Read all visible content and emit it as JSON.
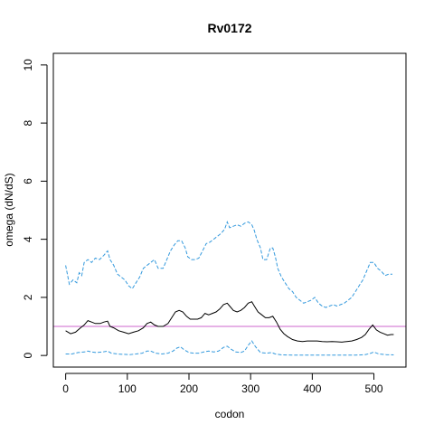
{
  "chart_data": {
    "type": "line",
    "title": "Rv0172",
    "xlabel": "codon",
    "ylabel": "omega (dN/dS)",
    "xlim": [
      -20,
      552
    ],
    "ylim": [
      -0.4,
      10.4
    ],
    "xticks": [
      0,
      100,
      200,
      300,
      400,
      500
    ],
    "yticks": [
      0,
      2,
      4,
      6,
      8,
      10
    ],
    "reference_line": {
      "y": 1,
      "color": "#cc66cc"
    },
    "grid": false,
    "legend": "none",
    "series": [
      {
        "role": "upper",
        "color": "#3399dd",
        "style": "dashed",
        "points": [
          [
            0,
            3.1
          ],
          [
            6,
            2.45
          ],
          [
            12,
            2.6
          ],
          [
            18,
            2.5
          ],
          [
            22,
            2.85
          ],
          [
            26,
            2.75
          ],
          [
            30,
            3.2
          ],
          [
            36,
            3.3
          ],
          [
            42,
            3.2
          ],
          [
            48,
            3.35
          ],
          [
            55,
            3.3
          ],
          [
            62,
            3.45
          ],
          [
            68,
            3.6
          ],
          [
            72,
            3.3
          ],
          [
            78,
            3.1
          ],
          [
            84,
            2.8
          ],
          [
            90,
            2.7
          ],
          [
            96,
            2.6
          ],
          [
            102,
            2.4
          ],
          [
            108,
            2.3
          ],
          [
            114,
            2.5
          ],
          [
            120,
            2.7
          ],
          [
            126,
            3.0
          ],
          [
            132,
            3.1
          ],
          [
            138,
            3.2
          ],
          [
            144,
            3.3
          ],
          [
            150,
            3.0
          ],
          [
            158,
            3.0
          ],
          [
            164,
            3.3
          ],
          [
            170,
            3.6
          ],
          [
            176,
            3.8
          ],
          [
            182,
            3.95
          ],
          [
            188,
            3.95
          ],
          [
            194,
            3.7
          ],
          [
            198,
            3.4
          ],
          [
            204,
            3.3
          ],
          [
            210,
            3.3
          ],
          [
            216,
            3.35
          ],
          [
            222,
            3.6
          ],
          [
            228,
            3.85
          ],
          [
            234,
            3.9
          ],
          [
            240,
            4.0
          ],
          [
            246,
            4.1
          ],
          [
            252,
            4.2
          ],
          [
            258,
            4.35
          ],
          [
            262,
            4.6
          ],
          [
            266,
            4.4
          ],
          [
            272,
            4.45
          ],
          [
            278,
            4.5
          ],
          [
            284,
            4.45
          ],
          [
            290,
            4.55
          ],
          [
            296,
            4.6
          ],
          [
            302,
            4.5
          ],
          [
            306,
            4.3
          ],
          [
            310,
            4.0
          ],
          [
            316,
            3.7
          ],
          [
            320,
            3.3
          ],
          [
            326,
            3.3
          ],
          [
            332,
            3.7
          ],
          [
            336,
            3.7
          ],
          [
            340,
            3.4
          ],
          [
            344,
            3.0
          ],
          [
            350,
            2.7
          ],
          [
            356,
            2.5
          ],
          [
            362,
            2.3
          ],
          [
            368,
            2.2
          ],
          [
            374,
            2.0
          ],
          [
            380,
            1.9
          ],
          [
            386,
            1.8
          ],
          [
            392,
            1.85
          ],
          [
            398,
            1.9
          ],
          [
            404,
            2.0
          ],
          [
            410,
            1.8
          ],
          [
            416,
            1.7
          ],
          [
            422,
            1.65
          ],
          [
            428,
            1.7
          ],
          [
            434,
            1.75
          ],
          [
            440,
            1.7
          ],
          [
            446,
            1.75
          ],
          [
            452,
            1.8
          ],
          [
            458,
            1.9
          ],
          [
            464,
            2.0
          ],
          [
            470,
            2.2
          ],
          [
            476,
            2.4
          ],
          [
            482,
            2.6
          ],
          [
            488,
            2.9
          ],
          [
            494,
            3.2
          ],
          [
            500,
            3.2
          ],
          [
            506,
            3.0
          ],
          [
            512,
            2.9
          ],
          [
            518,
            2.75
          ],
          [
            524,
            2.8
          ],
          [
            530,
            2.8
          ]
        ]
      },
      {
        "role": "estimate",
        "color": "#000000",
        "style": "solid",
        "points": [
          [
            0,
            0.85
          ],
          [
            8,
            0.75
          ],
          [
            16,
            0.8
          ],
          [
            24,
            0.95
          ],
          [
            30,
            1.05
          ],
          [
            36,
            1.2
          ],
          [
            42,
            1.15
          ],
          [
            48,
            1.1
          ],
          [
            56,
            1.1
          ],
          [
            62,
            1.15
          ],
          [
            68,
            1.18
          ],
          [
            72,
            1.0
          ],
          [
            78,
            0.95
          ],
          [
            86,
            0.85
          ],
          [
            94,
            0.8
          ],
          [
            102,
            0.75
          ],
          [
            110,
            0.8
          ],
          [
            118,
            0.85
          ],
          [
            126,
            0.95
          ],
          [
            132,
            1.1
          ],
          [
            138,
            1.15
          ],
          [
            144,
            1.05
          ],
          [
            150,
            1.0
          ],
          [
            158,
            1.0
          ],
          [
            166,
            1.1
          ],
          [
            172,
            1.3
          ],
          [
            178,
            1.5
          ],
          [
            184,
            1.55
          ],
          [
            190,
            1.5
          ],
          [
            196,
            1.35
          ],
          [
            202,
            1.25
          ],
          [
            208,
            1.25
          ],
          [
            214,
            1.25
          ],
          [
            220,
            1.3
          ],
          [
            226,
            1.45
          ],
          [
            232,
            1.4
          ],
          [
            238,
            1.45
          ],
          [
            244,
            1.5
          ],
          [
            250,
            1.6
          ],
          [
            256,
            1.75
          ],
          [
            262,
            1.8
          ],
          [
            266,
            1.7
          ],
          [
            272,
            1.55
          ],
          [
            278,
            1.5
          ],
          [
            284,
            1.55
          ],
          [
            290,
            1.65
          ],
          [
            296,
            1.8
          ],
          [
            302,
            1.85
          ],
          [
            306,
            1.7
          ],
          [
            312,
            1.5
          ],
          [
            318,
            1.4
          ],
          [
            324,
            1.3
          ],
          [
            330,
            1.3
          ],
          [
            336,
            1.35
          ],
          [
            342,
            1.15
          ],
          [
            348,
            0.9
          ],
          [
            354,
            0.75
          ],
          [
            360,
            0.65
          ],
          [
            368,
            0.55
          ],
          [
            376,
            0.5
          ],
          [
            384,
            0.48
          ],
          [
            392,
            0.5
          ],
          [
            400,
            0.5
          ],
          [
            408,
            0.5
          ],
          [
            416,
            0.48
          ],
          [
            424,
            0.47
          ],
          [
            432,
            0.48
          ],
          [
            440,
            0.47
          ],
          [
            448,
            0.46
          ],
          [
            456,
            0.48
          ],
          [
            464,
            0.5
          ],
          [
            472,
            0.55
          ],
          [
            480,
            0.62
          ],
          [
            486,
            0.72
          ],
          [
            492,
            0.9
          ],
          [
            498,
            1.05
          ],
          [
            504,
            0.88
          ],
          [
            510,
            0.8
          ],
          [
            516,
            0.75
          ],
          [
            522,
            0.7
          ],
          [
            528,
            0.72
          ],
          [
            532,
            0.72
          ]
        ]
      },
      {
        "role": "lower",
        "color": "#3399dd",
        "style": "dashed",
        "points": [
          [
            0,
            0.05
          ],
          [
            10,
            0.05
          ],
          [
            20,
            0.1
          ],
          [
            30,
            0.12
          ],
          [
            36,
            0.15
          ],
          [
            42,
            0.12
          ],
          [
            50,
            0.1
          ],
          [
            60,
            0.12
          ],
          [
            68,
            0.15
          ],
          [
            74,
            0.08
          ],
          [
            84,
            0.05
          ],
          [
            94,
            0.04
          ],
          [
            104,
            0.03
          ],
          [
            114,
            0.05
          ],
          [
            124,
            0.08
          ],
          [
            132,
            0.15
          ],
          [
            138,
            0.15
          ],
          [
            146,
            0.08
          ],
          [
            156,
            0.05
          ],
          [
            166,
            0.08
          ],
          [
            174,
            0.15
          ],
          [
            180,
            0.25
          ],
          [
            186,
            0.3
          ],
          [
            192,
            0.2
          ],
          [
            200,
            0.1
          ],
          [
            208,
            0.08
          ],
          [
            216,
            0.08
          ],
          [
            224,
            0.12
          ],
          [
            232,
            0.15
          ],
          [
            240,
            0.12
          ],
          [
            248,
            0.15
          ],
          [
            256,
            0.28
          ],
          [
            262,
            0.32
          ],
          [
            268,
            0.22
          ],
          [
            276,
            0.12
          ],
          [
            284,
            0.1
          ],
          [
            290,
            0.15
          ],
          [
            296,
            0.35
          ],
          [
            302,
            0.5
          ],
          [
            308,
            0.3
          ],
          [
            316,
            0.1
          ],
          [
            326,
            0.08
          ],
          [
            334,
            0.1
          ],
          [
            340,
            0.05
          ],
          [
            350,
            0.02
          ],
          [
            370,
            0.01
          ],
          [
            400,
            0.01
          ],
          [
            440,
            0.01
          ],
          [
            470,
            0.01
          ],
          [
            486,
            0.03
          ],
          [
            494,
            0.07
          ],
          [
            500,
            0.12
          ],
          [
            508,
            0.05
          ],
          [
            520,
            0.03
          ],
          [
            532,
            0.02
          ]
        ]
      }
    ]
  }
}
